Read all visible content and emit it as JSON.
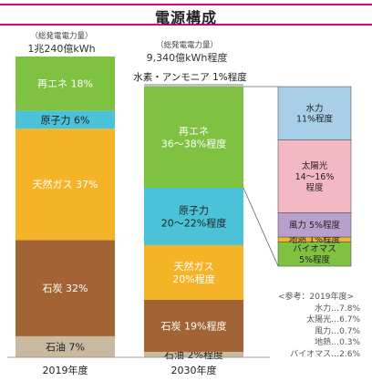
{
  "title": "電源構成",
  "colors": {
    "accent": "#e3007f",
    "hydrogen": "#c0c0c0"
  },
  "columns": [
    {
      "sub": "（総発電電力量）",
      "main": "1兆240億kWh"
    },
    {
      "sub": "（総発電電力量）",
      "main": "9,340億kWh程度"
    }
  ],
  "chart_data": [
    {
      "type": "bar",
      "stacked": true,
      "categories": [
        "2019年度",
        "2030年度"
      ],
      "segments_2019": [
        {
          "label": "石油 7%",
          "value": 7,
          "color": "#c9b9a0",
          "text_color": "#222"
        },
        {
          "label": "石炭 32%",
          "value": 32,
          "color": "#a26434",
          "text_color": "#fff"
        },
        {
          "label": "天然ガス 37%",
          "value": 37,
          "color": "#f5b428",
          "text_color": "#fff"
        },
        {
          "label": "原子力 6%",
          "value": 6,
          "color": "#4ac3d8",
          "text_color": "#222"
        },
        {
          "label": "再エネ 18%",
          "value": 18,
          "color": "#7fc241",
          "text_color": "#fff"
        }
      ],
      "segments_2030": [
        {
          "label": "石油 2%程度",
          "value": 2,
          "color": "#c9b9a0",
          "text_color": "#222"
        },
        {
          "label": "石炭 19%程度",
          "value": 19,
          "color": "#a26434",
          "text_color": "#fff"
        },
        {
          "label": "天然ガス\n20%程度",
          "value": 20,
          "color": "#f5b428",
          "text_color": "#fff"
        },
        {
          "label": "原子力\n20～22%程度",
          "value": 21,
          "color": "#4ac3d8",
          "text_color": "#222"
        },
        {
          "label": "再エネ\n36～38%程度",
          "value": 37,
          "color": "#7fc241",
          "text_color": "#fff"
        },
        {
          "label": "水素・アンモニア 1%程度",
          "value": 1,
          "color": "#c0c0c0",
          "text_color": "#222"
        }
      ]
    },
    {
      "type": "bar",
      "stacked": true,
      "categories": [
        "再エネ内訳"
      ],
      "segments": [
        {
          "label": "バイオマス\n5%程度",
          "value": 5,
          "color": "#7fc241",
          "text_color": "#222"
        },
        {
          "label": "地熱 1%程度",
          "value": 1,
          "color": "#f5b428",
          "text_color": "#222"
        },
        {
          "label": "風力 5%程度",
          "value": 5,
          "color": "#b8a0cc",
          "text_color": "#222"
        },
        {
          "label": "太陽光\n14～16%\n程度",
          "value": 15,
          "color": "#f4b8c4",
          "text_color": "#222"
        },
        {
          "label": "水力\n11%程度",
          "value": 11,
          "color": "#a9cfe8",
          "text_color": "#222"
        }
      ]
    }
  ],
  "x_labels": [
    "2019年度",
    "2030年度"
  ],
  "reference": {
    "head": "<参考：2019年度>",
    "lines": [
      "水力…7.8%",
      "太陽光…6.7%",
      "風力…0.7%",
      "地熱…0.3%",
      "バイオマス…2.6%"
    ]
  }
}
